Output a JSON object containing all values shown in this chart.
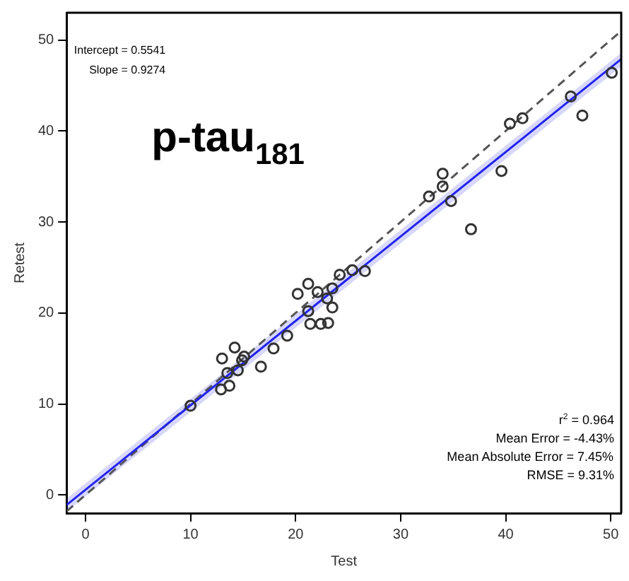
{
  "chart_data": {
    "type": "scatter",
    "xlabel": "Test",
    "ylabel": "Retest",
    "xlim": [
      -1.8,
      51
    ],
    "ylim": [
      -2,
      53
    ],
    "xticks": [
      0,
      10,
      20,
      30,
      40,
      50
    ],
    "yticks": [
      0,
      10,
      20,
      30,
      40,
      50
    ],
    "grid": false,
    "legend": false,
    "annotations": [
      "p-tau$_{181}$",
      "Intercept = 0.5541",
      "Slope = 0.9274",
      "r$^{2}$ = 0.964",
      "Mean Error = -4.43%",
      "Mean Absolute Error = 7.45%",
      "RMSE = 9.31%"
    ],
    "series": [
      {
        "type": "scatter",
        "color": "#333333",
        "marker": "circle",
        "x": [
          10.0,
          12.9,
          13.7,
          13.5,
          14.5,
          14.9,
          13.0,
          14.2,
          15.1,
          16.7,
          17.9,
          19.2,
          23.1,
          22.4,
          21.4,
          21.2,
          23.5,
          23.0,
          20.2,
          21.2,
          22.1,
          23.5,
          24.2,
          25.4,
          26.6,
          32.7,
          34.0,
          34.0,
          34.8,
          36.7,
          39.6,
          40.4,
          41.6,
          46.2,
          47.3,
          50.1
        ],
        "values": [
          9.8,
          11.6,
          12.0,
          13.4,
          13.7,
          14.8,
          15.0,
          16.2,
          15.2,
          14.1,
          16.1,
          17.5,
          18.9,
          18.8,
          18.8,
          20.2,
          20.6,
          21.6,
          22.1,
          23.2,
          22.3,
          22.7,
          24.2,
          24.7,
          24.6,
          32.8,
          33.9,
          35.3,
          32.3,
          29.2,
          35.6,
          40.8,
          41.4,
          43.8,
          41.7,
          46.4
        ]
      },
      {
        "type": "line",
        "color": "#2222ee",
        "x": [
          -1.8,
          51
        ],
        "values": [
          -1.1,
          47.9
        ],
        "lower": [
          -1.8,
          47.1
        ],
        "upper": [
          -0.4,
          48.6
        ],
        "line_style": "solid"
      },
      {
        "type": "line",
        "color": "#555555",
        "x": [
          -1.8,
          51
        ],
        "values": [
          -1.8,
          51
        ],
        "line_style": "dashed"
      }
    ]
  }
}
